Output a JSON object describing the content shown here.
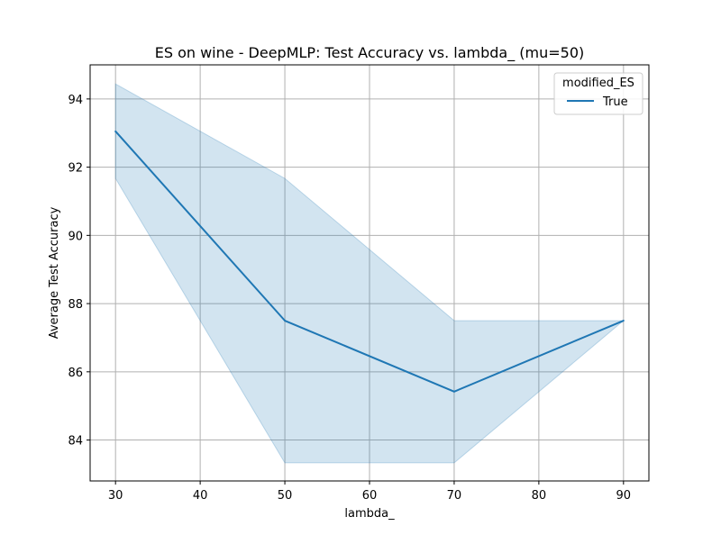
{
  "chart_data": {
    "type": "line",
    "title": "ES on wine - DeepMLP: Test Accuracy vs. lambda_ (mu=50)",
    "xlabel": "lambda_",
    "ylabel": "Average Test Accuracy",
    "xlim": [
      27,
      93
    ],
    "ylim": [
      82.8,
      95.0
    ],
    "xticks": [
      30,
      40,
      50,
      60,
      70,
      80,
      90
    ],
    "yticks": [
      84,
      86,
      88,
      90,
      92,
      94
    ],
    "grid": true,
    "legend": {
      "title": "modified_ES",
      "placement": "top-right"
    },
    "series": [
      {
        "name": "True",
        "color": "#1f77b4",
        "x": [
          30,
          50,
          70,
          90
        ],
        "y": [
          93.05,
          87.5,
          85.42,
          87.5
        ],
        "band_lower": [
          91.67,
          83.33,
          83.33,
          87.5
        ],
        "band_upper": [
          94.44,
          91.67,
          87.5,
          87.5
        ]
      }
    ]
  }
}
